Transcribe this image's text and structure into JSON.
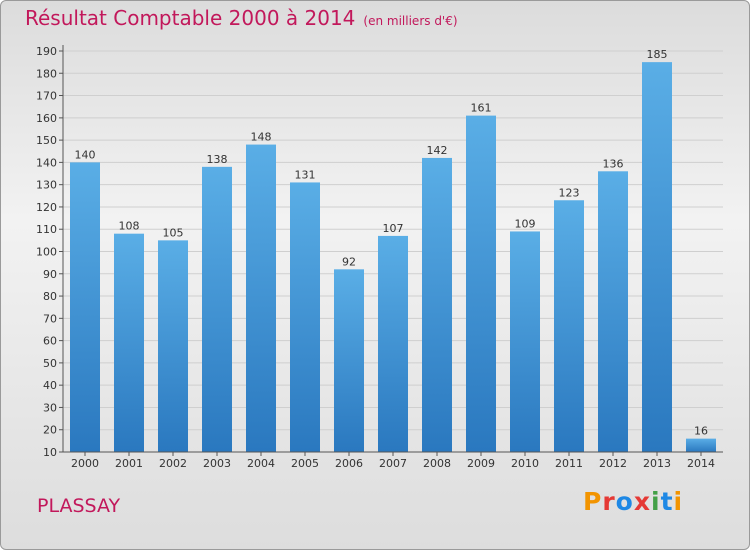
{
  "title": "Résultat Comptable 2000 à 2014",
  "unit": "(en milliers d'€)",
  "commune": "PLASSAY",
  "logo": {
    "text": "Proxiti",
    "letters": [
      {
        "ch": "P",
        "color": "#f29400"
      },
      {
        "ch": "r",
        "color": "#e53935"
      },
      {
        "ch": "o",
        "color": "#1e88e5"
      },
      {
        "ch": "x",
        "color": "#e53935"
      },
      {
        "ch": "i",
        "color": "#43a047"
      },
      {
        "ch": "t",
        "color": "#1e88e5"
      },
      {
        "ch": "i",
        "color": "#f29400"
      }
    ]
  },
  "colors": {
    "bar_top": "#5aaee6",
    "bar_bottom": "#2a78bf",
    "title": "#c2185b"
  },
  "chart_data": {
    "type": "bar",
    "categories": [
      "2000",
      "2001",
      "2002",
      "2003",
      "2004",
      "2005",
      "2006",
      "2007",
      "2008",
      "2009",
      "2010",
      "2011",
      "2012",
      "2013",
      "2014"
    ],
    "values": [
      140,
      108,
      105,
      138,
      148,
      131,
      92,
      107,
      142,
      161,
      109,
      123,
      136,
      185,
      16
    ],
    "ylim": [
      10,
      190
    ],
    "yticks": [
      10,
      20,
      30,
      40,
      50,
      60,
      70,
      80,
      90,
      100,
      110,
      120,
      130,
      140,
      150,
      160,
      170,
      180,
      190
    ],
    "grid": true,
    "legend": "none"
  }
}
